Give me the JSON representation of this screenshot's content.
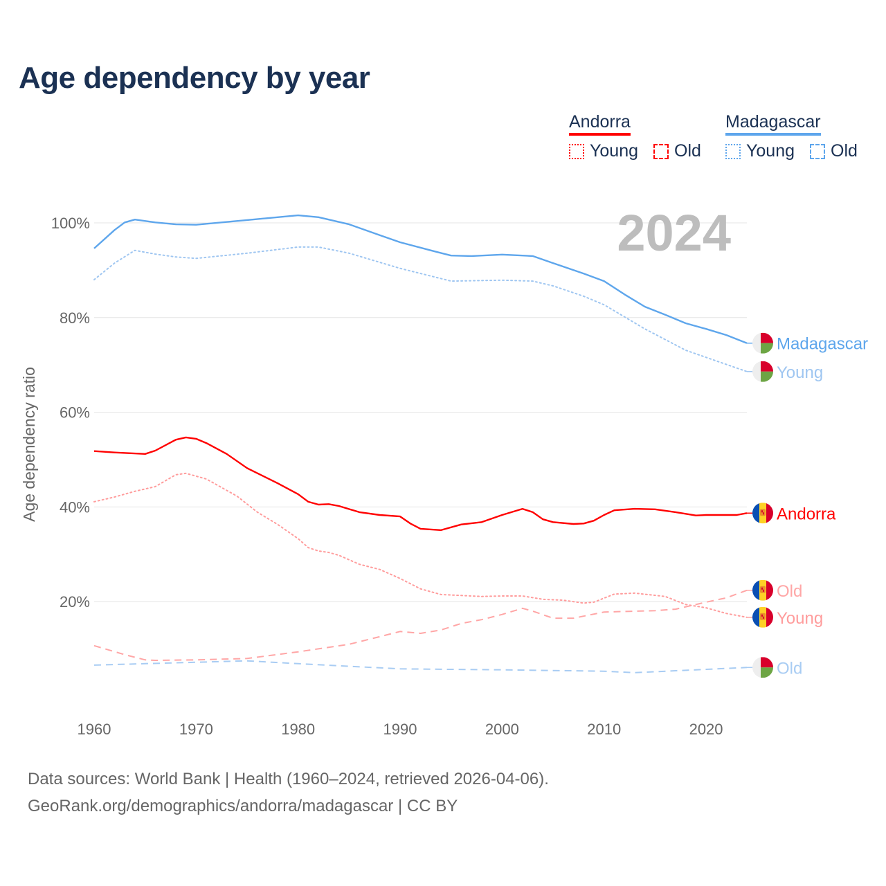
{
  "title": "Age dependency by year",
  "legend": {
    "groups": [
      {
        "name": "Andorra",
        "color": "#ff0000",
        "items": [
          "Young",
          "Old"
        ]
      },
      {
        "name": "Madagascar",
        "color": "#5ea6ec",
        "items": [
          "Young",
          "Old"
        ]
      }
    ]
  },
  "footer": {
    "line1": "Data sources: World Bank | Health (1960–2024, retrieved 2026-04-06).",
    "line2": "GeoRank.org/demographics/andorra/madagascar | CC BY"
  },
  "chart_data": {
    "type": "line",
    "title": "Age dependency by year",
    "xlabel": "",
    "ylabel": "Age dependency ratio",
    "xlim": [
      1960,
      2024
    ],
    "ylim": [
      0,
      105
    ],
    "x_ticks": [
      "1960",
      "1970",
      "1980",
      "1990",
      "2000",
      "2010",
      "2020"
    ],
    "y_ticks": [
      "20%",
      "40%",
      "60%",
      "80%",
      "100%"
    ],
    "annotation": "2024",
    "grid": true,
    "series": [
      {
        "name": "Madagascar",
        "end_label": "Madagascar",
        "country": "Madagascar",
        "style": "solid",
        "color": "#5ea6ec",
        "points": [
          [
            1960,
            94.6
          ],
          [
            1962,
            98.5
          ],
          [
            1963,
            100.1
          ],
          [
            1964,
            100.7
          ],
          [
            1966,
            100.1
          ],
          [
            1968,
            99.7
          ],
          [
            1970,
            99.6
          ],
          [
            1975,
            100.6
          ],
          [
            1980,
            101.6
          ],
          [
            1982,
            101.2
          ],
          [
            1985,
            99.7
          ],
          [
            1988,
            97.4
          ],
          [
            1990,
            95.9
          ],
          [
            1993,
            94.2
          ],
          [
            1995,
            93.1
          ],
          [
            1997,
            93.0
          ],
          [
            2000,
            93.3
          ],
          [
            2003,
            93.0
          ],
          [
            2005,
            91.5
          ],
          [
            2008,
            89.3
          ],
          [
            2010,
            87.7
          ],
          [
            2012,
            84.9
          ],
          [
            2014,
            82.3
          ],
          [
            2016,
            80.6
          ],
          [
            2018,
            78.8
          ],
          [
            2020,
            77.6
          ],
          [
            2022,
            76.3
          ],
          [
            2024,
            74.6
          ]
        ]
      },
      {
        "name": "Madagascar Young",
        "end_label": "Young",
        "country": "Madagascar",
        "style": "dotted",
        "color": "#9fc6f1",
        "points": [
          [
            1960,
            88.0
          ],
          [
            1962,
            91.5
          ],
          [
            1964,
            94.2
          ],
          [
            1966,
            93.4
          ],
          [
            1968,
            92.8
          ],
          [
            1970,
            92.5
          ],
          [
            1975,
            93.6
          ],
          [
            1980,
            94.9
          ],
          [
            1982,
            94.9
          ],
          [
            1985,
            93.6
          ],
          [
            1990,
            90.4
          ],
          [
            1995,
            87.7
          ],
          [
            2000,
            87.9
          ],
          [
            2003,
            87.7
          ],
          [
            2005,
            86.7
          ],
          [
            2008,
            84.5
          ],
          [
            2010,
            82.7
          ],
          [
            2014,
            77.6
          ],
          [
            2018,
            73.1
          ],
          [
            2020,
            71.6
          ],
          [
            2024,
            68.6
          ]
        ]
      },
      {
        "name": "Madagascar Old",
        "end_label": "Old",
        "country": "Madagascar",
        "style": "dashed",
        "color": "#a8ccf3",
        "points": [
          [
            1960,
            6.6
          ],
          [
            1965,
            6.9
          ],
          [
            1975,
            7.5
          ],
          [
            1980,
            6.9
          ],
          [
            1990,
            5.8
          ],
          [
            2000,
            5.6
          ],
          [
            2010,
            5.3
          ],
          [
            2013,
            5.0
          ],
          [
            2020,
            5.7
          ],
          [
            2024,
            6.1
          ]
        ]
      },
      {
        "name": "Andorra",
        "end_label": "Andorra",
        "country": "Andorra",
        "style": "solid",
        "color": "#ff0000",
        "points": [
          [
            1960,
            51.8
          ],
          [
            1962,
            51.5
          ],
          [
            1965,
            51.2
          ],
          [
            1966,
            51.9
          ],
          [
            1968,
            54.2
          ],
          [
            1969,
            54.7
          ],
          [
            1970,
            54.4
          ],
          [
            1971,
            53.5
          ],
          [
            1973,
            51.2
          ],
          [
            1975,
            48.2
          ],
          [
            1978,
            45.0
          ],
          [
            1980,
            42.7
          ],
          [
            1981,
            41.1
          ],
          [
            1982,
            40.5
          ],
          [
            1983,
            40.6
          ],
          [
            1984,
            40.2
          ],
          [
            1986,
            38.9
          ],
          [
            1988,
            38.3
          ],
          [
            1990,
            38.0
          ],
          [
            1991,
            36.5
          ],
          [
            1992,
            35.4
          ],
          [
            1994,
            35.1
          ],
          [
            1996,
            36.3
          ],
          [
            1998,
            36.8
          ],
          [
            2000,
            38.3
          ],
          [
            2002,
            39.6
          ],
          [
            2003,
            38.9
          ],
          [
            2004,
            37.4
          ],
          [
            2005,
            36.8
          ],
          [
            2007,
            36.4
          ],
          [
            2008,
            36.5
          ],
          [
            2009,
            37.1
          ],
          [
            2010,
            38.3
          ],
          [
            2011,
            39.3
          ],
          [
            2013,
            39.6
          ],
          [
            2015,
            39.5
          ],
          [
            2017,
            38.9
          ],
          [
            2019,
            38.2
          ],
          [
            2020,
            38.3
          ],
          [
            2023,
            38.3
          ],
          [
            2024,
            38.7
          ]
        ]
      },
      {
        "name": "Andorra Young",
        "end_label": "Young",
        "country": "Andorra",
        "style": "dotted",
        "color": "#ff9c9c",
        "points": [
          [
            1960,
            41.1
          ],
          [
            1962,
            42.1
          ],
          [
            1964,
            43.3
          ],
          [
            1966,
            44.3
          ],
          [
            1968,
            46.8
          ],
          [
            1969,
            47.1
          ],
          [
            1971,
            45.9
          ],
          [
            1974,
            42.3
          ],
          [
            1976,
            38.9
          ],
          [
            1978,
            36.3
          ],
          [
            1980,
            33.3
          ],
          [
            1981,
            31.4
          ],
          [
            1982,
            30.7
          ],
          [
            1983,
            30.4
          ],
          [
            1984,
            29.8
          ],
          [
            1986,
            27.9
          ],
          [
            1988,
            26.8
          ],
          [
            1990,
            24.9
          ],
          [
            1992,
            22.7
          ],
          [
            1994,
            21.5
          ],
          [
            1996,
            21.3
          ],
          [
            1998,
            21.1
          ],
          [
            2000,
            21.2
          ],
          [
            2002,
            21.2
          ],
          [
            2004,
            20.5
          ],
          [
            2006,
            20.3
          ],
          [
            2008,
            19.7
          ],
          [
            2009,
            19.9
          ],
          [
            2011,
            21.6
          ],
          [
            2013,
            21.8
          ],
          [
            2016,
            21.1
          ],
          [
            2018,
            19.4
          ],
          [
            2020,
            18.7
          ],
          [
            2022,
            17.5
          ],
          [
            2024,
            16.7
          ]
        ]
      },
      {
        "name": "Andorra Old",
        "end_label": "Old",
        "country": "Andorra",
        "style": "dashed",
        "color": "#ffa6a6",
        "points": [
          [
            1960,
            10.7
          ],
          [
            1963,
            8.8
          ],
          [
            1965,
            7.7
          ],
          [
            1966,
            7.6
          ],
          [
            1970,
            7.7
          ],
          [
            1975,
            8.0
          ],
          [
            1980,
            9.4
          ],
          [
            1985,
            11.0
          ],
          [
            1988,
            12.6
          ],
          [
            1990,
            13.7
          ],
          [
            1992,
            13.3
          ],
          [
            1994,
            14.0
          ],
          [
            1996,
            15.4
          ],
          [
            1998,
            16.2
          ],
          [
            2000,
            17.3
          ],
          [
            2002,
            18.6
          ],
          [
            2003,
            18.0
          ],
          [
            2005,
            16.5
          ],
          [
            2007,
            16.5
          ],
          [
            2010,
            17.8
          ],
          [
            2015,
            18.1
          ],
          [
            2017,
            18.4
          ],
          [
            2020,
            19.9
          ],
          [
            2022,
            20.8
          ],
          [
            2024,
            22.4
          ]
        ]
      }
    ]
  }
}
